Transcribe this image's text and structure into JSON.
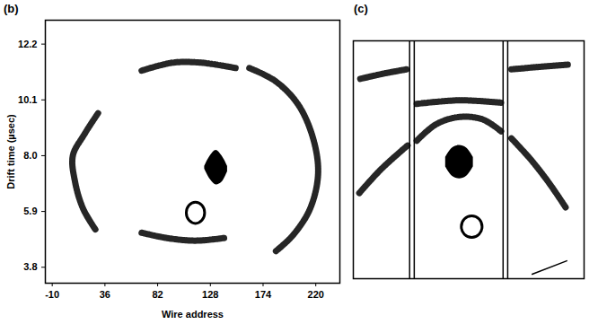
{
  "chart_data": [
    {
      "type": "scatter",
      "title": "(b)",
      "x_label": "Wire address",
      "y_label": "Drift time (µsec)",
      "xlim": [
        -16,
        241
      ],
      "xticks": [
        -10,
        36,
        82,
        128,
        174,
        220
      ],
      "ylim": [
        3.2,
        13.1
      ],
      "yticks": [
        {
          "value": 3.8,
          "label": "3.8"
        },
        {
          "value": 5.9,
          "label": "5.9"
        },
        {
          "value": 8,
          "label": "8.0"
        },
        {
          "value": 10.1,
          "label": "10.1"
        },
        {
          "value": 12.2,
          "label": "12.2"
        }
      ],
      "color": "#000000",
      "series": [
        {
          "type": "line",
          "line_style": "dotted",
          "values": [
            [
              30,
              9.6
            ],
            [
              18,
              8.8
            ],
            [
              8,
              8.0
            ],
            [
              10,
              7.0
            ],
            [
              17,
              6.0
            ],
            [
              28,
              5.2
            ]
          ]
        },
        {
          "type": "line",
          "line_style": "dotted",
          "values": [
            [
              68,
              11.2
            ],
            [
              95,
              11.5
            ],
            [
              120,
              11.5
            ],
            [
              150,
              11.3
            ]
          ]
        },
        {
          "type": "line",
          "line_style": "dotted",
          "values": [
            [
              162,
              11.3
            ],
            [
              185,
              10.8
            ],
            [
              205,
              9.9
            ],
            [
              218,
              8.6
            ],
            [
              222,
              7.3
            ],
            [
              215,
              6.0
            ],
            [
              200,
              5.0
            ],
            [
              185,
              4.4
            ]
          ]
        },
        {
          "type": "line",
          "line_style": "dotted",
          "values": [
            [
              68,
              5.1
            ],
            [
              90,
              4.9
            ],
            [
              115,
              4.8
            ],
            [
              140,
              4.9
            ]
          ]
        },
        {
          "type": "ring",
          "line_style": "solid",
          "values": [
            [
              107,
              5.85
            ],
            [
              109.3,
              6.13
            ],
            [
              115,
              6.25
            ],
            [
              120.7,
              6.13
            ],
            [
              123,
              5.85
            ],
            [
              120.7,
              5.57
            ],
            [
              115,
              5.45
            ],
            [
              109.3,
              5.57
            ]
          ]
        },
        {
          "type": "area",
          "values": [
            [
              123,
              7.5,
              7.6
            ],
            [
              128,
              7.1,
              8.0
            ],
            [
              133,
              6.9,
              8.2
            ],
            [
              138,
              7.0,
              8.0
            ],
            [
              143,
              7.4,
              7.6
            ]
          ]
        }
      ]
    },
    {
      "type": "scatter",
      "title": "(c)",
      "xlim": [
        0,
        100
      ],
      "ylim": [
        0,
        100
      ],
      "tick_labels": false,
      "color": "#000000",
      "series": [
        {
          "type": "line",
          "line_style": "solid",
          "values": [
            [
              24.4,
              0
            ],
            [
              24.4,
              100
            ]
          ]
        },
        {
          "type": "line",
          "line_style": "solid",
          "values": [
            [
              26.4,
              0
            ],
            [
              26.4,
              100
            ]
          ]
        },
        {
          "type": "line",
          "line_style": "solid",
          "values": [
            [
              64.9,
              0
            ],
            [
              64.9,
              100
            ]
          ]
        },
        {
          "type": "line",
          "line_style": "solid",
          "values": [
            [
              66.9,
              0
            ],
            [
              66.9,
              100
            ]
          ]
        },
        {
          "type": "line",
          "line_style": "dotted",
          "values": [
            [
              2.6,
              36
            ],
            [
              12,
              46
            ],
            [
              23.5,
              56
            ]
          ]
        },
        {
          "type": "line",
          "line_style": "dotted",
          "values": [
            [
              27.5,
              58
            ],
            [
              36,
              65
            ],
            [
              46,
              68
            ],
            [
              56,
              67
            ],
            [
              64,
              62
            ]
          ]
        },
        {
          "type": "line",
          "line_style": "dotted",
          "values": [
            [
              68.5,
              59
            ],
            [
              77,
              50
            ],
            [
              85,
              40
            ],
            [
              92,
              30
            ]
          ]
        },
        {
          "type": "line",
          "line_style": "dotted",
          "values": [
            [
              27.5,
              73.5
            ],
            [
              46,
              75
            ],
            [
              64,
              74
            ]
          ]
        },
        {
          "type": "line",
          "line_style": "dotted",
          "values": [
            [
              3,
              84
            ],
            [
              12,
              86
            ],
            [
              23,
              88
            ]
          ]
        },
        {
          "type": "line",
          "line_style": "dotted",
          "values": [
            [
              68.5,
              88
            ],
            [
              80,
              89
            ],
            [
              93,
              90
            ]
          ]
        },
        {
          "type": "line",
          "line_style": "solid",
          "values": [
            [
              77.5,
              1.9
            ],
            [
              92.5,
              7.5
            ]
          ]
        },
        {
          "type": "area",
          "values": [
            [
              40,
              47,
              51
            ],
            [
              43,
              43,
              55
            ],
            [
              46,
              42,
              56
            ],
            [
              49,
              43,
              55
            ],
            [
              52,
              47,
              51
            ]
          ]
        },
        {
          "type": "ring",
          "line_style": "solid",
          "values": [
            [
              46.8,
              21.9
            ],
            [
              48.1,
              25.1
            ],
            [
              51.3,
              26.4
            ],
            [
              54.5,
              25.1
            ],
            [
              55.8,
              21.9
            ],
            [
              54.5,
              18.7
            ],
            [
              51.3,
              17.4
            ],
            [
              48.1,
              18.7
            ]
          ]
        }
      ]
    }
  ]
}
